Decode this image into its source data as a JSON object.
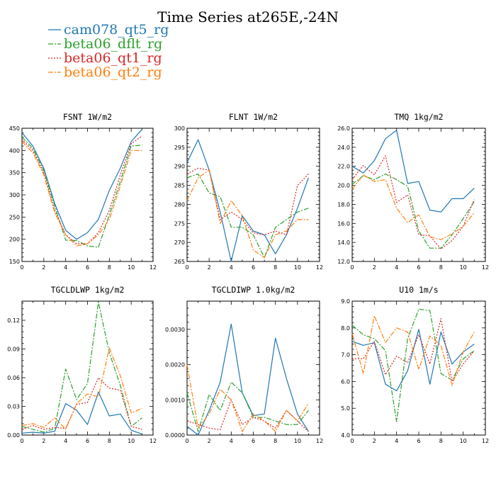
{
  "title": "Time Series at265E,-24N",
  "colors": {
    "cam078_qt5_rg": "#1f77b4",
    "beta06_dflt_rg": "#2ca02c",
    "beta06_qt1_rg": "#d62728",
    "beta06_qt2_rg": "#ff7f0e"
  },
  "legend": [
    {
      "name": "cam078_qt5_rg",
      "color": "#1f77b4",
      "dash": "solid"
    },
    {
      "name": "beta06_dflt_rg",
      "color": "#2ca02c",
      "dash": "dashdot"
    },
    {
      "name": "beta06_qt1_rg",
      "color": "#d62728",
      "dash": "dotted"
    },
    {
      "name": "beta06_qt2_rg",
      "color": "#ff7f0e",
      "dash": "dashdot"
    }
  ],
  "chart_data": [
    {
      "type": "line",
      "title": "FSNT  1W/m2",
      "xlim": [
        0,
        12
      ],
      "ylim": [
        150,
        450
      ],
      "xticks": [
        "0",
        "2",
        "4",
        "6",
        "8",
        "10",
        "12"
      ],
      "yticks": [
        "150",
        "200",
        "250",
        "300",
        "350",
        "400",
        "450"
      ],
      "x": [
        0,
        1,
        2,
        3,
        4,
        5,
        6,
        7,
        8,
        9,
        10,
        11
      ],
      "series": [
        {
          "name": "cam078_qt5_rg",
          "values": [
            440,
            410,
            360,
            280,
            220,
            200,
            215,
            245,
            310,
            360,
            420,
            448
          ]
        },
        {
          "name": "beta06_dflt_rg",
          "values": [
            430,
            405,
            355,
            275,
            198,
            197,
            185,
            182,
            255,
            330,
            410,
            412
          ]
        },
        {
          "name": "beta06_qt1_rg",
          "values": [
            425,
            400,
            350,
            265,
            210,
            190,
            190,
            215,
            265,
            345,
            415,
            433
          ]
        },
        {
          "name": "beta06_qt2_rg",
          "values": [
            420,
            395,
            345,
            260,
            210,
            185,
            190,
            210,
            245,
            320,
            400,
            400
          ]
        }
      ]
    },
    {
      "type": "line",
      "title": "FLNT  1W/m2",
      "xlim": [
        0,
        12
      ],
      "ylim": [
        265,
        300
      ],
      "xticks": [
        "0",
        "2",
        "4",
        "6",
        "8",
        "10",
        "12"
      ],
      "yticks": [
        "265",
        "270",
        "275",
        "280",
        "285",
        "290",
        "295",
        "300"
      ],
      "x": [
        0,
        1,
        2,
        3,
        4,
        5,
        6,
        7,
        8,
        9,
        10,
        11
      ],
      "series": [
        {
          "name": "cam078_qt5_rg",
          "values": [
            291,
            297,
            289,
            278,
            265,
            277,
            273,
            272,
            267,
            272,
            279,
            287
          ]
        },
        {
          "name": "beta06_dflt_rg",
          "values": [
            287,
            288,
            283,
            282,
            274,
            274,
            272,
            266,
            274,
            276,
            278,
            279
          ]
        },
        {
          "name": "beta06_qt1_rg",
          "values": [
            288,
            289.5,
            289,
            276,
            278,
            276,
            272.5,
            272,
            273,
            272,
            285,
            288
          ]
        },
        {
          "name": "beta06_qt2_rg",
          "values": [
            281,
            287,
            289,
            275,
            281,
            277,
            268,
            266,
            272,
            273,
            276,
            276
          ]
        }
      ]
    },
    {
      "type": "line",
      "title": "TMQ  1kg/m2",
      "xlim": [
        0,
        12
      ],
      "ylim": [
        12,
        26
      ],
      "xticks": [
        "0",
        "2",
        "4",
        "6",
        "8",
        "10",
        "12"
      ],
      "yticks": [
        "12.0",
        "14.0",
        "16.0",
        "18.0",
        "20.0",
        "22.0",
        "24.0",
        "26.0"
      ],
      "x": [
        0,
        1,
        2,
        3,
        4,
        5,
        6,
        7,
        8,
        9,
        10,
        11
      ],
      "series": [
        {
          "name": "cam078_qt5_rg",
          "values": [
            22.0,
            21.3,
            22.6,
            24.9,
            25.8,
            20.2,
            20.4,
            17.4,
            17.2,
            18.6,
            18.6,
            19.7
          ]
        },
        {
          "name": "beta06_dflt_rg",
          "values": [
            20.1,
            21.0,
            20.6,
            21.2,
            20.6,
            19.9,
            15.2,
            13.4,
            13.4,
            14.8,
            16.5,
            18.3
          ]
        },
        {
          "name": "beta06_qt1_rg",
          "values": [
            20.6,
            22.1,
            21.1,
            23.1,
            18.2,
            19.0,
            14.8,
            14.7,
            13.3,
            14.2,
            15.7,
            18.5
          ]
        },
        {
          "name": "beta06_qt2_rg",
          "values": [
            19.6,
            21.1,
            20.4,
            20.6,
            17.6,
            16.1,
            16.9,
            14.6,
            14.3,
            14.9,
            15.7,
            17.1
          ]
        }
      ]
    },
    {
      "type": "line",
      "title": "TGCLDLWP  1kg/m2",
      "xlim": [
        0,
        12
      ],
      "ylim": [
        0,
        0.14
      ],
      "xticks": [
        "0",
        "2",
        "4",
        "6",
        "8",
        "10",
        "12"
      ],
      "yticks": [
        "0.00",
        "0.03",
        "0.06",
        "0.09",
        "0.12"
      ],
      "x": [
        0,
        1,
        2,
        3,
        4,
        5,
        6,
        7,
        8,
        9,
        10,
        11
      ],
      "series": [
        {
          "name": "cam078_qt5_rg",
          "values": [
            0.002,
            0.003,
            0.002,
            0.004,
            0.033,
            0.026,
            0.011,
            0.045,
            0.02,
            0.022,
            0.005,
            0.001
          ]
        },
        {
          "name": "beta06_dflt_rg",
          "values": [
            0.009,
            0.006,
            0.003,
            0.007,
            0.069,
            0.037,
            0.054,
            0.139,
            0.086,
            0.052,
            0.009,
            0.018
          ]
        },
        {
          "name": "beta06_qt1_rg",
          "values": [
            0.006,
            0.01,
            0.006,
            0.008,
            0.007,
            0.032,
            0.034,
            0.06,
            0.049,
            0.047,
            0.009,
            0.006
          ]
        },
        {
          "name": "beta06_qt2_rg",
          "values": [
            0.01,
            0.012,
            0.008,
            0.018,
            0.006,
            0.033,
            0.043,
            0.04,
            0.091,
            0.062,
            0.023,
            0.028
          ]
        }
      ]
    },
    {
      "type": "line",
      "title": "TGCLDIWP  1.0kg/m2",
      "xlim": [
        0,
        12
      ],
      "ylim": [
        0,
        0.0038
      ],
      "xticks": [
        "0",
        "2",
        "4",
        "6",
        "8",
        "10",
        "12"
      ],
      "yticks": [
        "0.0000",
        "0.0010",
        "0.0020",
        "0.0030"
      ],
      "x": [
        0,
        1,
        2,
        3,
        4,
        5,
        6,
        7,
        8,
        9,
        10,
        11
      ],
      "series": [
        {
          "name": "cam078_qt5_rg",
          "values": [
            0.00025,
            0.0,
            0.0007,
            0.0015,
            0.00315,
            0.0012,
            0.00055,
            0.0006,
            0.00275,
            0.0016,
            0.0006,
            0.0001
          ]
        },
        {
          "name": "beta06_dflt_rg",
          "values": [
            0.0012,
            0.0001,
            0.00115,
            0.0007,
            0.0015,
            0.0012,
            0.0005,
            0.0005,
            0.0004,
            0.0003,
            0.0003,
            0.0007
          ]
        },
        {
          "name": "beta06_qt1_rg",
          "values": [
            0.0004,
            0.0003,
            0.0002,
            0.00015,
            0.001,
            0.0003,
            0.0005,
            0.0004,
            0.0002,
            0.0007,
            0.0004,
            0.0001
          ]
        },
        {
          "name": "beta06_qt2_rg",
          "values": [
            0.002,
            0.0002,
            0.0006,
            0.0013,
            0.001,
            0.0001,
            0.0006,
            0.0004,
            0.0001,
            0.0007,
            0.0004,
            0.0009
          ]
        }
      ]
    },
    {
      "type": "line",
      "title": "U10  1m/s",
      "xlim": [
        0,
        12
      ],
      "ylim": [
        4.0,
        9.0
      ],
      "xticks": [
        "0",
        "2",
        "4",
        "6",
        "8",
        "10",
        "12"
      ],
      "yticks": [
        "4.0",
        "5.0",
        "6.0",
        "7.0",
        "8.0",
        "9.0"
      ],
      "x": [
        0,
        1,
        2,
        3,
        4,
        5,
        6,
        7,
        8,
        9,
        10,
        11
      ],
      "series": [
        {
          "name": "cam078_qt5_rg",
          "values": [
            7.5,
            7.35,
            7.45,
            5.9,
            5.65,
            6.4,
            7.95,
            5.9,
            7.85,
            6.65,
            7.1,
            7.4
          ]
        },
        {
          "name": "beta06_dflt_rg",
          "values": [
            8.1,
            7.75,
            7.6,
            7.15,
            4.5,
            7.6,
            8.7,
            8.65,
            6.3,
            6.05,
            6.85,
            7.15
          ]
        },
        {
          "name": "beta06_qt1_rg",
          "values": [
            6.85,
            6.85,
            7.5,
            6.25,
            6.95,
            6.7,
            7.75,
            6.65,
            8.35,
            6.0,
            6.65,
            7.15
          ]
        },
        {
          "name": "beta06_qt2_rg",
          "values": [
            7.8,
            6.3,
            8.45,
            7.45,
            8.0,
            7.85,
            6.45,
            7.7,
            7.35,
            5.85,
            7.1,
            7.85
          ]
        }
      ]
    }
  ]
}
